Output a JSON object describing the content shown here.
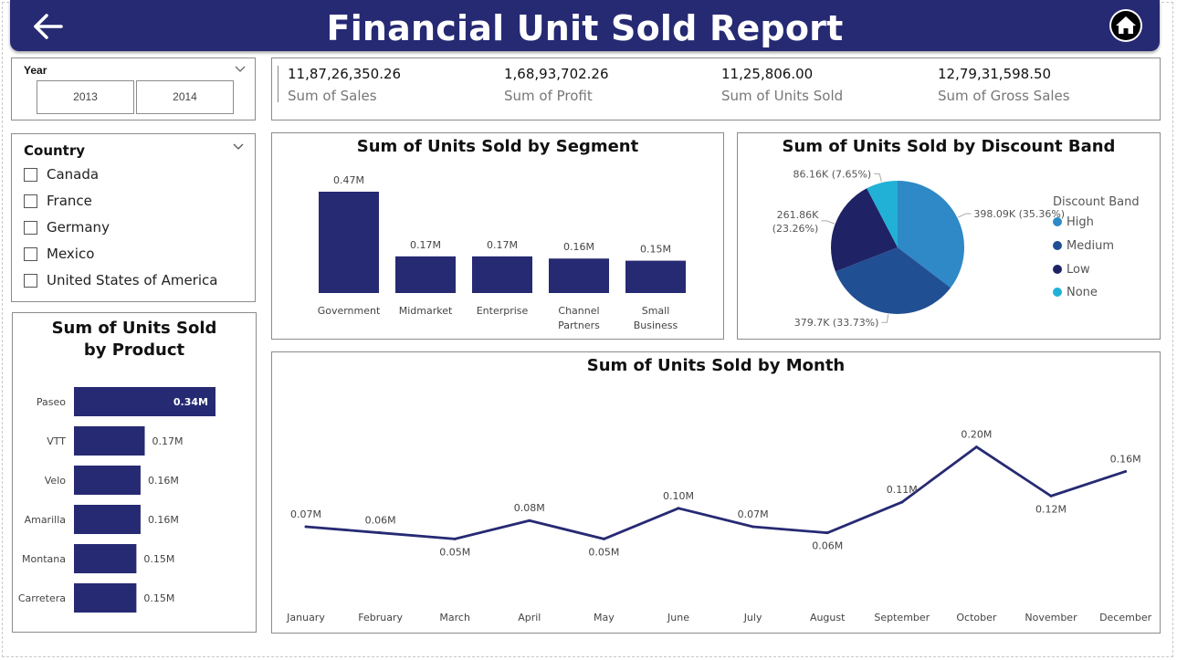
{
  "header": {
    "title": "Financial Unit Sold Report",
    "back_icon": "arrow-left-icon",
    "home_icon": "home-icon",
    "background_color": "#262a73"
  },
  "year_slicer": {
    "label": "Year",
    "options": [
      "2013",
      "2014"
    ]
  },
  "kpis": [
    {
      "value": "11,87,26,350.26",
      "label": "Sum of Sales"
    },
    {
      "value": "1,68,93,702.26",
      "label": "Sum of Profit"
    },
    {
      "value": "11,25,806.00",
      "label": "Sum of Units Sold"
    },
    {
      "value": "12,79,31,598.50",
      "label": "Sum of Gross Sales"
    }
  ],
  "country_slicer": {
    "label": "Country",
    "options": [
      "Canada",
      "France",
      "Germany",
      "Mexico",
      "United States of America"
    ]
  },
  "chart_data": [
    {
      "id": "product",
      "type": "bar",
      "orientation": "horizontal",
      "title": "Sum of Units Sold by Product",
      "categories": [
        "Paseo",
        "VTT",
        "Velo",
        "Amarilla",
        "Montana",
        "Carretera"
      ],
      "values": [
        0.34,
        0.17,
        0.16,
        0.16,
        0.15,
        0.15
      ],
      "value_labels": [
        "0.34M",
        "0.17M",
        "0.16M",
        "0.16M",
        "0.15M",
        "0.15M"
      ],
      "unit": "M",
      "color": "#262a73"
    },
    {
      "id": "segment",
      "type": "bar",
      "title": "Sum of Units Sold by Segment",
      "categories": [
        "Government",
        "Midmarket",
        "Enterprise",
        "Channel Partners",
        "Small Business"
      ],
      "values": [
        0.47,
        0.17,
        0.17,
        0.16,
        0.15
      ],
      "value_labels": [
        "0.47M",
        "0.17M",
        "0.17M",
        "0.16M",
        "0.15M"
      ],
      "unit": "M",
      "color": "#262a73"
    },
    {
      "id": "discount",
      "type": "pie",
      "title": "Sum of Units Sold by Discount Band",
      "legend_title": "Discount Band",
      "legend_position": "right",
      "slices": [
        {
          "name": "High",
          "value": 398.09,
          "label": "398.09K (35.36%)",
          "color": "#2e89c6"
        },
        {
          "name": "Medium",
          "value": 379.7,
          "label": "379.7K (33.73%)",
          "color": "#214f93"
        },
        {
          "name": "Low",
          "value": 261.86,
          "label": "261.86K (23.26%)",
          "color": "#1f2265"
        },
        {
          "name": "None",
          "value": 86.16,
          "label": "86.16K (7.65%)",
          "color": "#22b1d6"
        }
      ]
    },
    {
      "id": "month",
      "type": "line",
      "title": "Sum of Units Sold by Month",
      "categories": [
        "January",
        "February",
        "March",
        "April",
        "May",
        "June",
        "July",
        "August",
        "September",
        "October",
        "November",
        "December"
      ],
      "values": [
        0.07,
        0.06,
        0.05,
        0.08,
        0.05,
        0.1,
        0.07,
        0.06,
        0.11,
        0.2,
        0.12,
        0.16
      ],
      "value_labels": [
        "0.07M",
        "0.06M",
        "0.05M",
        "0.08M",
        "0.05M",
        "0.10M",
        "0.07M",
        "0.06M",
        "0.11M",
        "0.20M",
        "0.12M",
        "0.16M"
      ],
      "unit": "M",
      "color": "#262a73"
    }
  ]
}
